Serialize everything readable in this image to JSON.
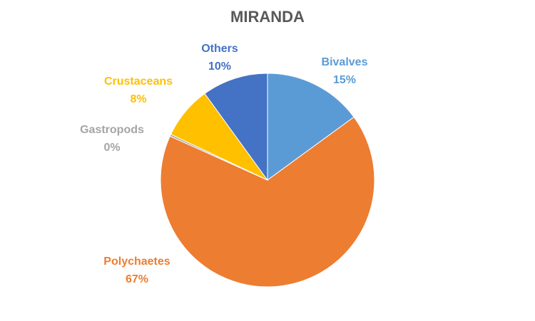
{
  "chart_data": {
    "type": "pie",
    "title": "MIRANDA",
    "categories": [
      "Bivalves",
      "Polychaetes",
      "Gastropods",
      "Crustaceans",
      "Others"
    ],
    "values": [
      15,
      67,
      0.3,
      8,
      10
    ],
    "value_labels": [
      "15%",
      "67%",
      "0%",
      "8%",
      "10%"
    ],
    "colors": [
      "#5b9bd5",
      "#ed7d31",
      "#a5a5a5",
      "#ffc000",
      "#4472c4"
    ]
  }
}
